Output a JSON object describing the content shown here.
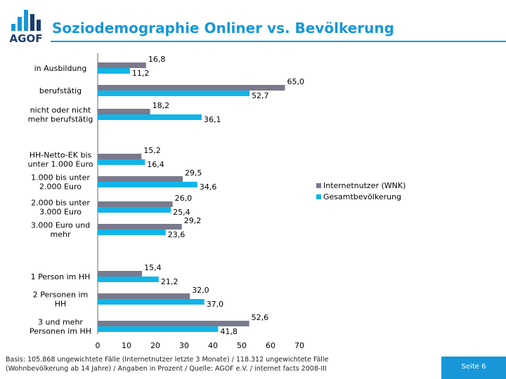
{
  "header": {
    "logo_text": "AGOF",
    "title": "Soziodemographie Onliner vs. Bevölkerung"
  },
  "colors": {
    "accent": "#1797d8",
    "logo_dark": "#1b3b6f",
    "series_internet": "#7a7a8e",
    "series_population": "#12b5e8"
  },
  "chart_data": {
    "type": "bar",
    "orientation": "horizontal",
    "categories": [
      "in Ausbildung",
      "berufstätig",
      "nicht oder nicht mehr berufstätig",
      "HH-Netto-EK bis unter 1.000 Euro",
      "1.000 bis unter 2.000 Euro",
      "2.000 bis unter 3.000 Euro",
      "3.000 Euro und mehr",
      "1 Person im HH",
      "2 Personen im HH",
      "3 und mehr Personen im HH"
    ],
    "category_lines": [
      [
        "in Ausbildung"
      ],
      [
        "berufstätig"
      ],
      [
        "nicht oder nicht",
        "mehr berufstätig"
      ],
      [
        "HH-Netto-EK bis",
        "unter 1.000 Euro"
      ],
      [
        "1.000 bis unter",
        "2.000 Euro"
      ],
      [
        "2.000 bis unter",
        "3.000 Euro"
      ],
      [
        "3.000 Euro und",
        "mehr"
      ],
      [
        "1 Person im HH"
      ],
      [
        "2 Personen im",
        "HH"
      ],
      [
        "3 und mehr",
        "Personen im HH"
      ]
    ],
    "series": [
      {
        "name": "Internetnutzer (WNK)",
        "values": [
          16.8,
          65.0,
          18.2,
          15.2,
          29.5,
          26.0,
          29.2,
          15.4,
          32.0,
          52.6
        ],
        "labels": [
          "16,8",
          "65,0",
          "18,2",
          "15,2",
          "29,5",
          "26,0",
          "29,2",
          "15,4",
          "32,0",
          "52,6"
        ]
      },
      {
        "name": "Gesamtbevölkerung",
        "values": [
          11.2,
          52.7,
          36.1,
          16.4,
          34.6,
          25.4,
          23.6,
          21.2,
          37.0,
          41.8
        ],
        "labels": [
          "11,2",
          "52,7",
          "36,1",
          "16,4",
          "34,6",
          "25,4",
          "23,6",
          "21,2",
          "37,0",
          "41,8"
        ]
      }
    ],
    "xlim": [
      0,
      70
    ],
    "xticks": [
      0,
      10,
      20,
      30,
      40,
      50,
      60,
      70
    ],
    "xlabel": "",
    "ylabel": "",
    "grid": false,
    "legend_position": "right"
  },
  "footer": {
    "footnote_line1": "Basis: 105.868 ungewichtete Fälle (Internetnutzer letzte 3 Monate) / 118.312 ungewichtete Fälle",
    "footnote_line2": "(Wohnbevölkerung ab 14 Jahre) / Angaben in Prozent / Quelle: AGOF e.V. / internet facts 2008-III",
    "page_label": "Seite 6"
  }
}
